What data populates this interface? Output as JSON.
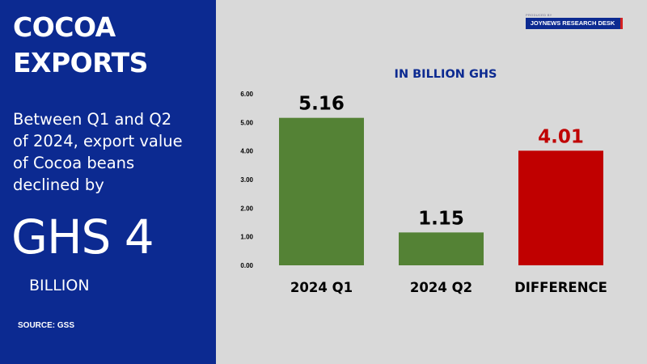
{
  "headline": {
    "line1": "COCOA",
    "line2": "EXPORTS"
  },
  "description": [
    "Between Q1 and Q2",
    "of 2024, export value",
    "of Cocoa beans",
    "declined by"
  ],
  "highlight": {
    "value": "GHS 4",
    "unit": "BILLION"
  },
  "source": "SOURCE: GSS",
  "brand": {
    "small_text": "PRODUCED BY",
    "name": "JOYNEWS RESEARCH DESK"
  },
  "colors": {
    "panel": "#0c2a91",
    "green": "#548235",
    "red": "#c00000",
    "background": "#d9d9d9"
  },
  "chart_data": {
    "type": "bar",
    "title": "IN BILLION GHS",
    "categories": [
      "2024 Q1",
      "2024 Q2",
      "DIFFERENCE"
    ],
    "values": [
      5.16,
      1.15,
      4.01
    ],
    "value_labels": [
      "5.16",
      "1.15",
      "4.01"
    ],
    "bar_colors": [
      "#548235",
      "#548235",
      "#c00000"
    ],
    "label_colors": [
      "#000000",
      "#000000",
      "#c00000"
    ],
    "ylim": [
      0,
      6
    ],
    "yticks": [
      "0.00",
      "1.00",
      "2.00",
      "3.00",
      "4.00",
      "5.00",
      "6.00"
    ],
    "xlabel": "",
    "ylabel": "",
    "grid": false
  }
}
